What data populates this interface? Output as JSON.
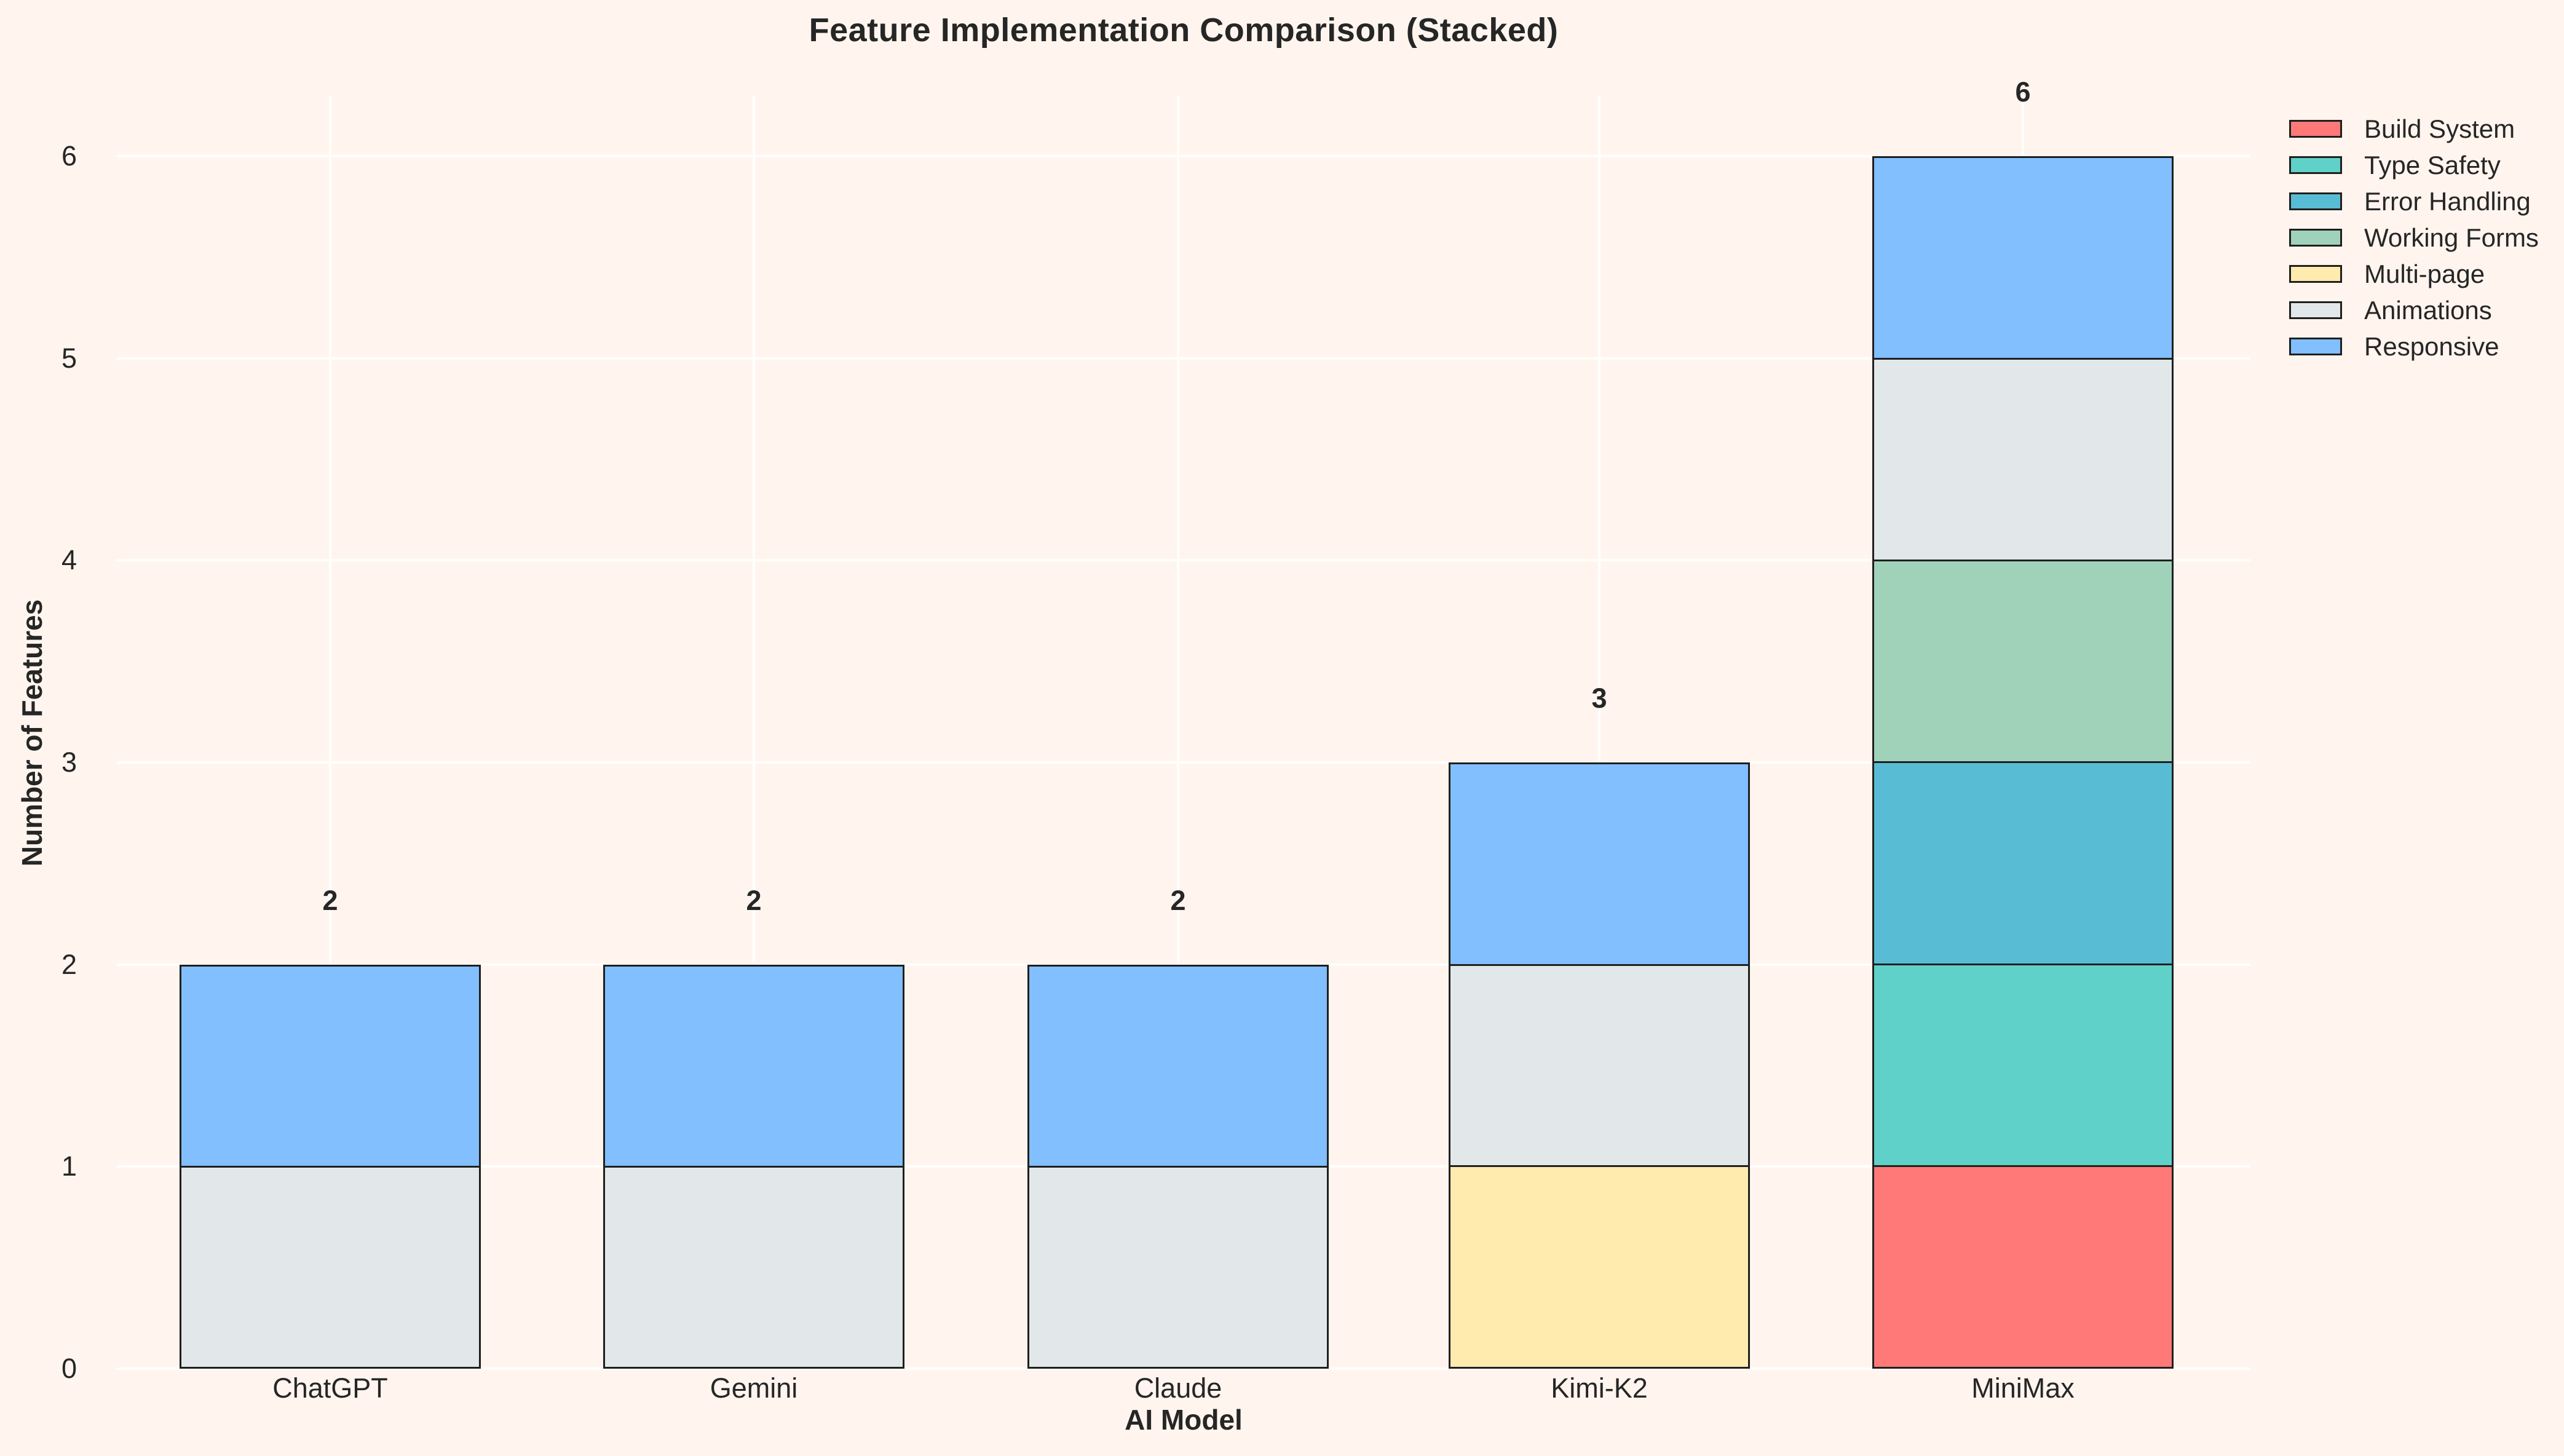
{
  "title": "Feature Implementation Comparison (Stacked)",
  "colors": {
    "background": "#FFF5EE",
    "edge": "#1F1F1F",
    "text": "#262626",
    "gridline": "rgba(255,255,255,0.85)"
  },
  "chart_data": {
    "type": "bar",
    "stacked": true,
    "title": "Feature Implementation Comparison (Stacked)",
    "xlabel": "AI Model",
    "ylabel": "Number of Features",
    "categories": [
      "ChatGPT",
      "Gemini",
      "Claude",
      "Kimi-K2",
      "MiniMax"
    ],
    "series": [
      {
        "name": "Build System",
        "color": "#FF7978",
        "values": [
          0,
          0,
          0,
          0,
          1
        ]
      },
      {
        "name": "Type Safety",
        "color": "#5FD1C8",
        "values": [
          0,
          0,
          0,
          0,
          1
        ]
      },
      {
        "name": "Error Handling",
        "color": "#58BDD4",
        "values": [
          0,
          0,
          0,
          0,
          1
        ]
      },
      {
        "name": "Working Forms",
        "color": "#A0D2BA",
        "values": [
          0,
          0,
          0,
          0,
          1
        ]
      },
      {
        "name": "Multi-page",
        "color": "#FFEBAE",
        "values": [
          0,
          0,
          0,
          1,
          0
        ]
      },
      {
        "name": "Animations",
        "color": "#E2E7E9",
        "values": [
          1,
          1,
          1,
          1,
          1
        ]
      },
      {
        "name": "Responsive",
        "color": "#82BFFF",
        "values": [
          1,
          1,
          1,
          1,
          1
        ]
      }
    ],
    "bar_totals": [
      2,
      2,
      2,
      3,
      6
    ],
    "yticks": [
      "0",
      "1",
      "2",
      "3",
      "4",
      "5",
      "6"
    ],
    "ylim": [
      0,
      6.3
    ],
    "grid": true,
    "legend_position": "upper right"
  }
}
